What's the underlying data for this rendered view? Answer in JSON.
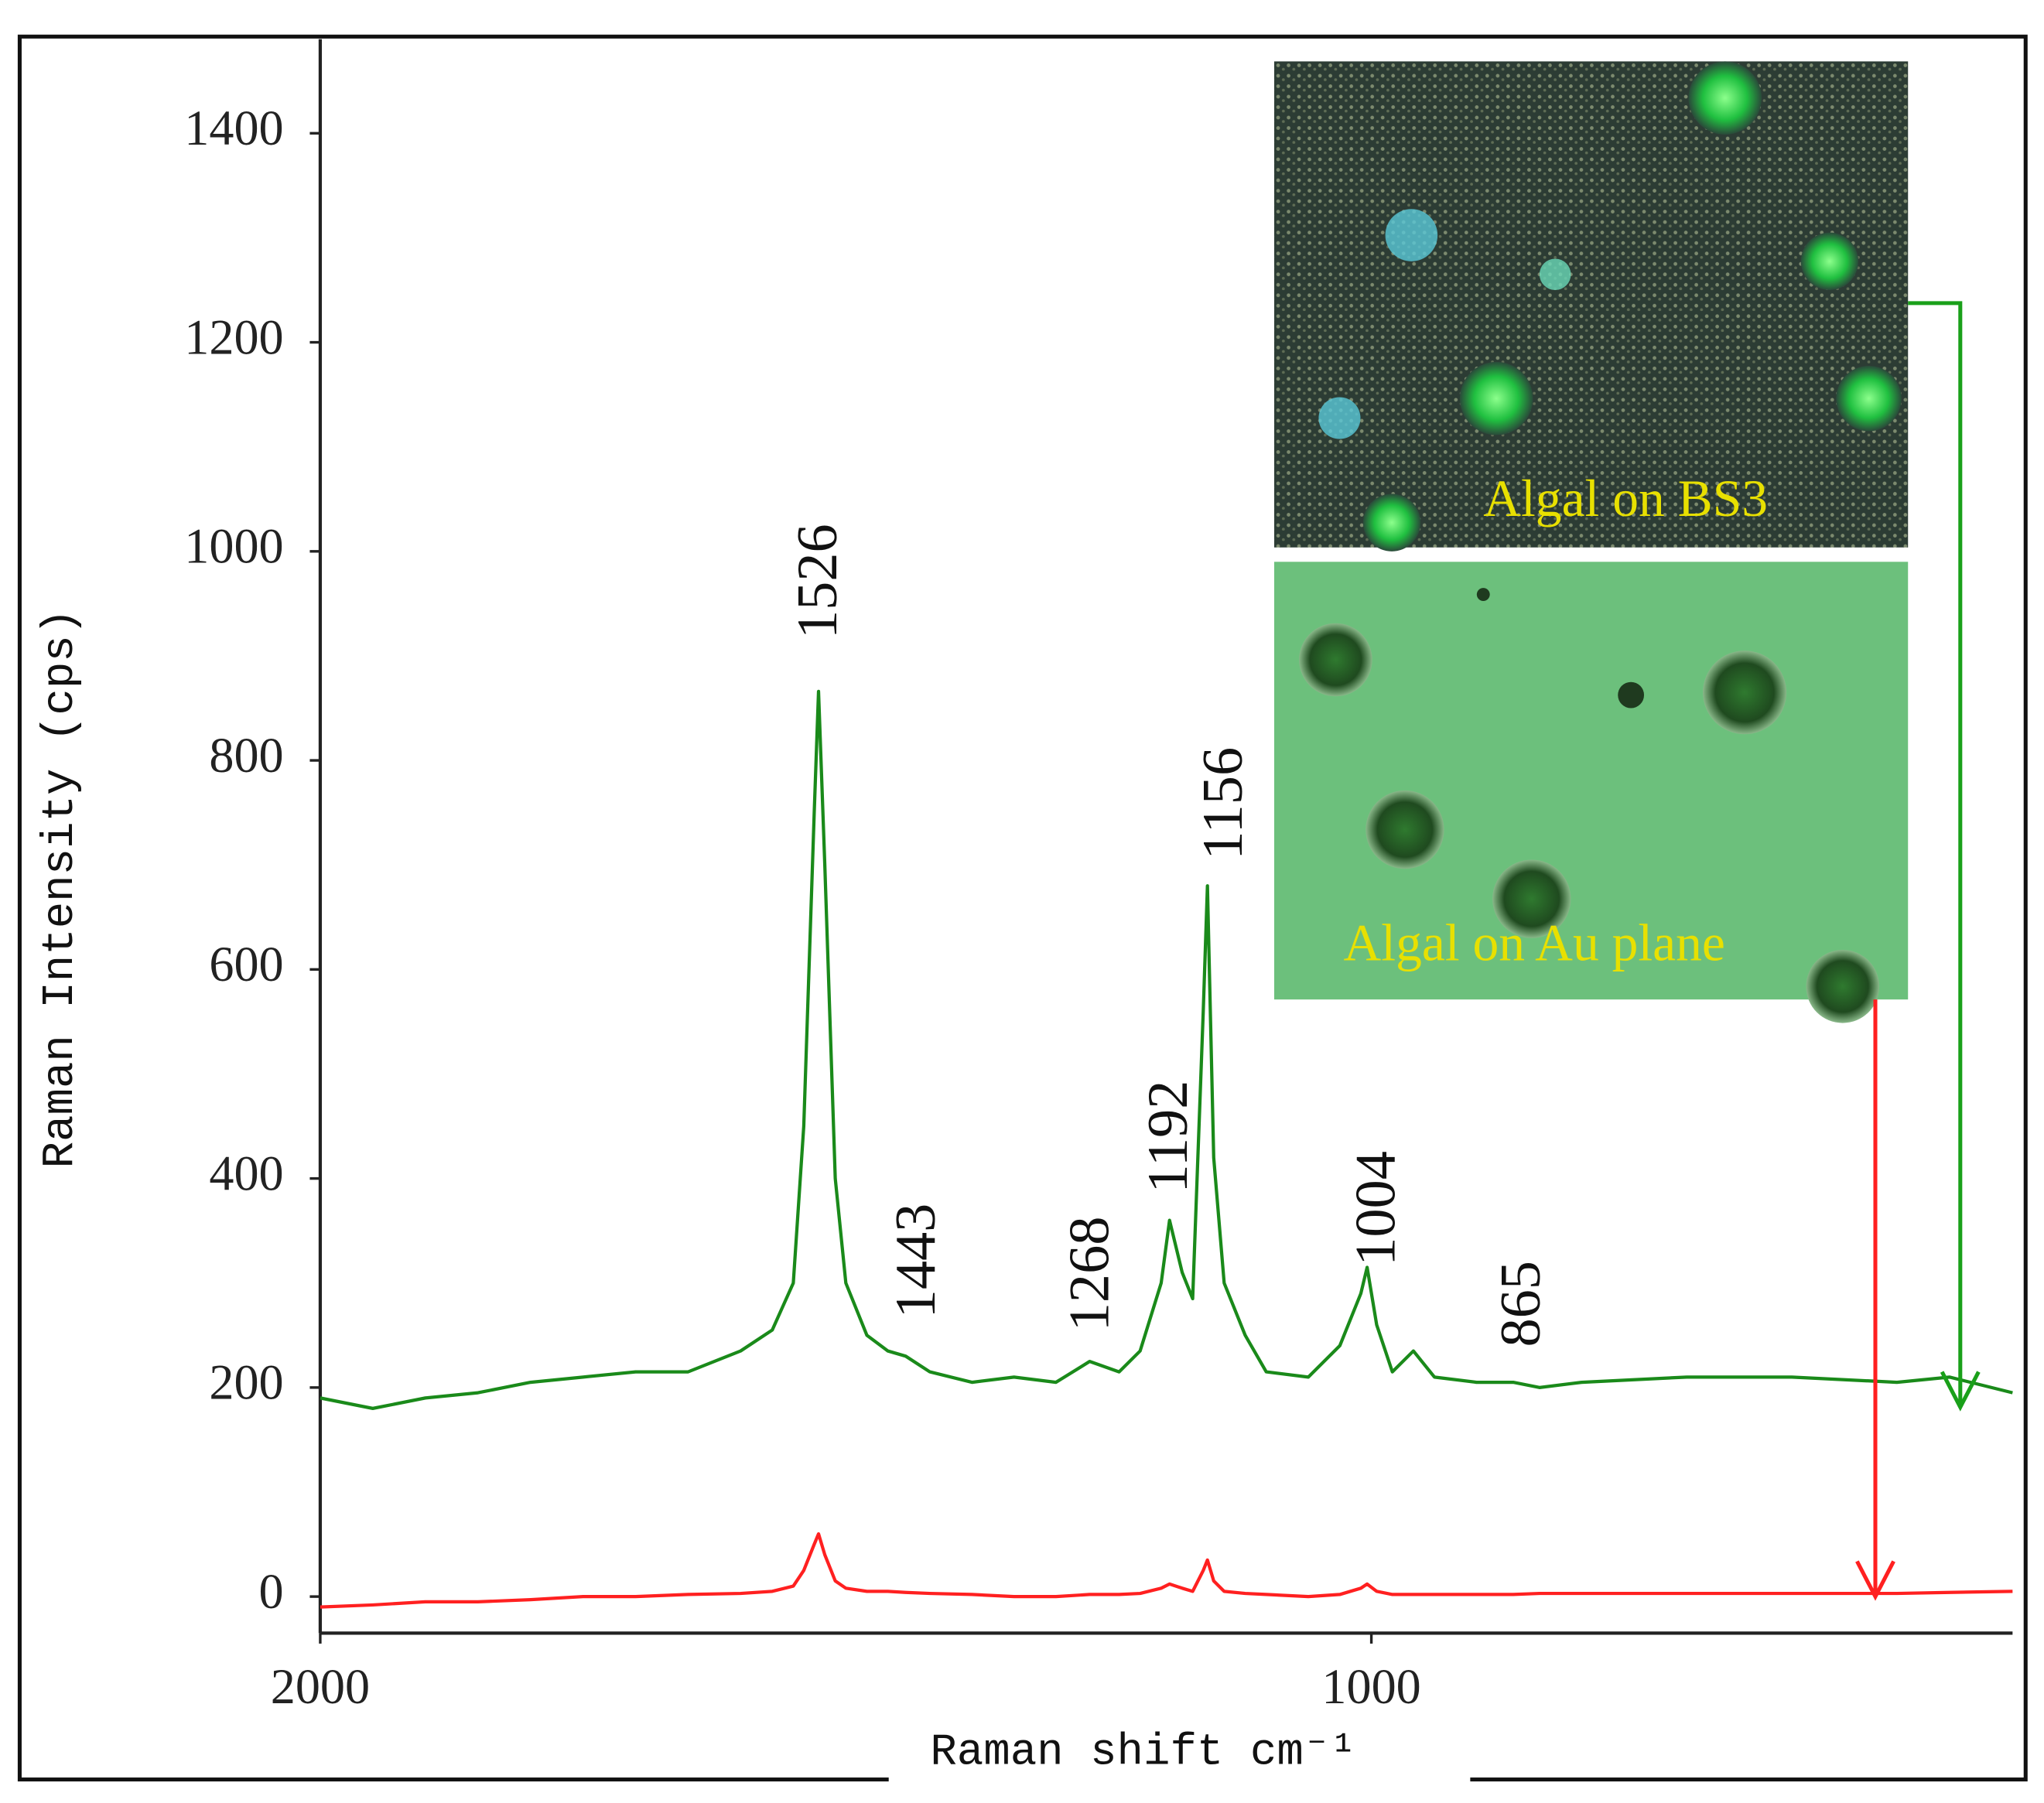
{
  "chart_data": {
    "type": "line",
    "x_label": "Raman shift  cm⁻¹",
    "y_label": "Raman Intensity (cps)",
    "x": [
      2000,
      1950,
      1900,
      1850,
      1800,
      1750,
      1700,
      1650,
      1600,
      1570,
      1550,
      1540,
      1530,
      1526,
      1520,
      1510,
      1500,
      1480,
      1460,
      1443,
      1420,
      1380,
      1340,
      1300,
      1268,
      1240,
      1220,
      1200,
      1192,
      1180,
      1170,
      1160,
      1156,
      1150,
      1140,
      1120,
      1100,
      1060,
      1030,
      1010,
      1004,
      995,
      980,
      960,
      940,
      900,
      865,
      840,
      800,
      700,
      600,
      500,
      450,
      390
    ],
    "series": [
      {
        "color": "#1a8a1a",
        "values": [
          190,
          180,
          190,
          195,
          205,
          210,
          215,
          215,
          235,
          255,
          300,
          450,
          750,
          866,
          700,
          400,
          300,
          250,
          235,
          230,
          215,
          205,
          210,
          205,
          225,
          215,
          235,
          300,
          360,
          310,
          285,
          560,
          680,
          420,
          300,
          250,
          215,
          210,
          240,
          290,
          315,
          260,
          215,
          235,
          210,
          205,
          205,
          200,
          205,
          210,
          210,
          205,
          210,
          195
        ]
      },
      {
        "color": "#ff2020",
        "values": [
          -10,
          -8,
          -5,
          -5,
          -3,
          0,
          0,
          2,
          3,
          5,
          10,
          25,
          50,
          60,
          40,
          15,
          8,
          5,
          5,
          4,
          3,
          2,
          0,
          0,
          2,
          2,
          3,
          8,
          12,
          8,
          5,
          25,
          35,
          15,
          5,
          3,
          2,
          0,
          2,
          8,
          12,
          5,
          2,
          2,
          2,
          2,
          2,
          3,
          3,
          3,
          3,
          3,
          4,
          5
        ]
      }
    ],
    "xlim": [
      2000,
      390
    ],
    "xticks": [
      2000,
      1000
    ],
    "ylim": [
      -35,
      1490
    ],
    "yticks": [
      0,
      200,
      400,
      600,
      800,
      1000,
      1200,
      1400
    ],
    "annotations": [
      "1526",
      "1443",
      "1268",
      "1192",
      "1156",
      "1004",
      "865"
    ],
    "inset_labels": [
      "Algal  on BS3",
      "Algal  on Au plane"
    ]
  }
}
